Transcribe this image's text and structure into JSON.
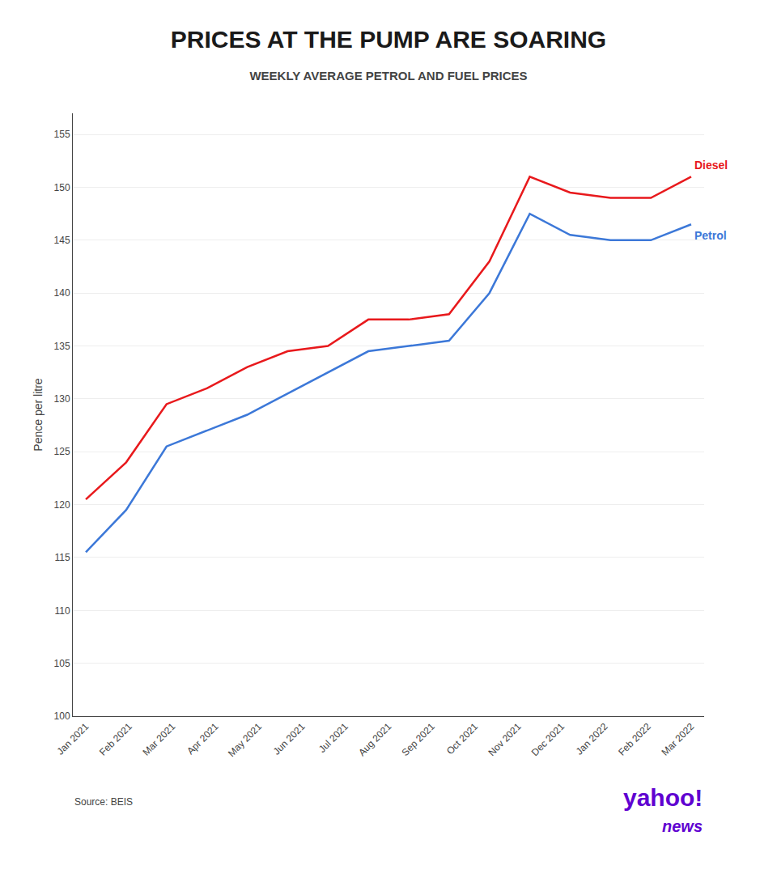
{
  "chart_data": {
    "type": "line",
    "title": "PRICES AT THE PUMP ARE SOARING",
    "subtitle": "WEEKLY AVERAGE PETROL AND FUEL PRICES",
    "y_label": "Pence per litre",
    "source": "Source: BEIS",
    "annotations": [
      "yahoo!",
      "news"
    ],
    "x": [
      0,
      0.9333333333333333,
      1.8666666666666667,
      2.8,
      3.7333333333333334,
      4.666666666666667,
      5.6,
      6.533333333333333,
      7.466666666666667,
      8.4,
      9.333333333333334,
      10.266666666666667,
      11.2,
      12.133333333333333,
      13.066666666666666,
      14
    ],
    "series": [
      {
        "name": "Diesel",
        "color": "#e8191c",
        "values": [
          120.5,
          124.0,
          129.5,
          131.0,
          133.0,
          134.5,
          135.0,
          137.5,
          137.5,
          138.0,
          143.0,
          151.0,
          149.5,
          149.0,
          149.0,
          151.0
        ]
      },
      {
        "name": "Petrol",
        "color": "#3c78d8",
        "values": [
          115.5,
          119.5,
          125.5,
          127.0,
          128.5,
          130.5,
          132.5,
          134.5,
          135.0,
          135.5,
          140.0,
          147.5,
          145.5,
          145.0,
          145.0,
          146.5
        ]
      }
    ],
    "xlim": [
      -0.3,
      14.3
    ],
    "xticks": [
      {
        "value": 0,
        "label": "Jan 2021"
      },
      {
        "value": 1,
        "label": "Feb 2021"
      },
      {
        "value": 2,
        "label": "Mar 2021"
      },
      {
        "value": 3,
        "label": "Apr 2021"
      },
      {
        "value": 4,
        "label": "May 2021"
      },
      {
        "value": 5,
        "label": "Jun 2021"
      },
      {
        "value": 6,
        "label": "Jul 2021"
      },
      {
        "value": 7,
        "label": "Aug 2021"
      },
      {
        "value": 8,
        "label": "Sep 2021"
      },
      {
        "value": 9,
        "label": "Oct 2021"
      },
      {
        "value": 10,
        "label": "Nov 2021"
      },
      {
        "value": 11,
        "label": "Dec 2021"
      },
      {
        "value": 12,
        "label": "Jan 2022"
      },
      {
        "value": 13,
        "label": "Feb 2022"
      },
      {
        "value": 14,
        "label": "Mar 2022"
      }
    ],
    "ylim": [
      100,
      157
    ],
    "yticks": [
      100,
      105,
      110,
      115,
      120,
      125,
      130,
      135,
      140,
      145,
      150,
      155
    ],
    "grid": "y"
  }
}
